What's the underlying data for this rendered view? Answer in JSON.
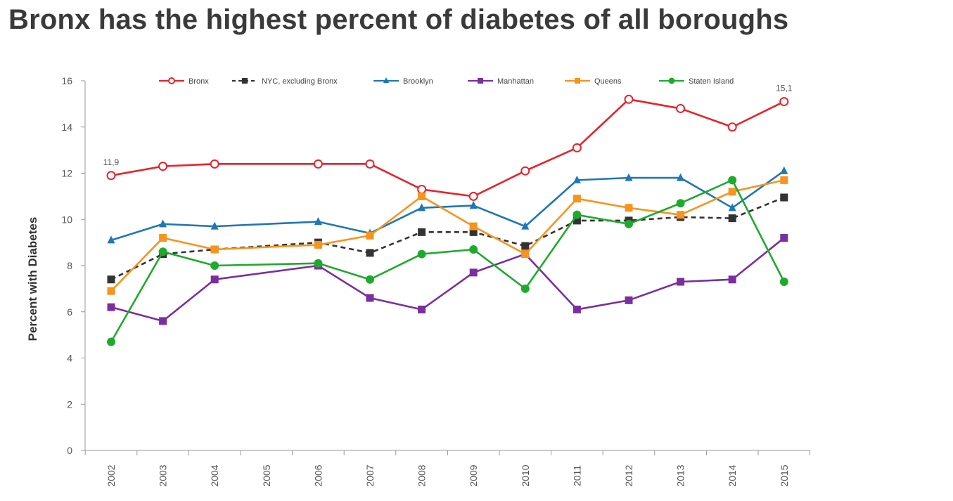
{
  "page_title": "Bronx has the highest percent of diabetes of all boroughs",
  "chart_data": {
    "type": "line",
    "title": "Bronx has the highest percent of diabetes of all boroughs",
    "xlabel": "",
    "ylabel": "Percent with Diabetes",
    "x": [
      "2002",
      "2003",
      "2004",
      "2005",
      "2006",
      "2007",
      "2008",
      "2009",
      "2010",
      "2011",
      "2012",
      "2013",
      "2014",
      "2015"
    ],
    "ylim": [
      0,
      16
    ],
    "yticks": [
      0,
      2,
      4,
      6,
      8,
      10,
      12,
      14,
      16
    ],
    "grid": false,
    "legend_position": "top",
    "series": [
      {
        "name": "Bronx",
        "color": "#e8222a",
        "marker": "open-circle",
        "dash": false,
        "values": [
          11.9,
          12.3,
          12.4,
          null,
          12.4,
          12.4,
          11.3,
          11.0,
          12.1,
          13.1,
          15.2,
          14.8,
          14.0,
          15.1
        ]
      },
      {
        "name": "NYC, excluding Bronx",
        "color": "#333333",
        "marker": "square",
        "dash": true,
        "values": [
          7.4,
          8.5,
          8.7,
          null,
          9.0,
          8.55,
          9.45,
          9.45,
          8.85,
          9.95,
          9.95,
          10.1,
          10.05,
          10.95
        ]
      },
      {
        "name": "Brooklyn",
        "color": "#1f77b4",
        "marker": "triangle",
        "dash": false,
        "values": [
          9.1,
          9.8,
          9.7,
          null,
          9.9,
          9.4,
          10.5,
          10.6,
          9.7,
          11.7,
          11.8,
          11.8,
          10.5,
          12.1
        ]
      },
      {
        "name": "Manhattan",
        "color": "#7b2f9e",
        "marker": "square",
        "dash": false,
        "values": [
          6.2,
          5.6,
          7.4,
          null,
          8.0,
          6.6,
          6.1,
          7.7,
          8.5,
          6.1,
          6.5,
          7.3,
          7.4,
          9.2
        ]
      },
      {
        "name": "Queens",
        "color": "#f7941d",
        "marker": "square",
        "dash": false,
        "values": [
          6.9,
          9.2,
          8.7,
          null,
          8.9,
          9.3,
          11.0,
          9.7,
          8.5,
          10.9,
          10.5,
          10.2,
          11.2,
          11.7
        ]
      },
      {
        "name": "Staten Island",
        "color": "#1faa2e",
        "marker": "circle",
        "dash": false,
        "values": [
          4.7,
          8.6,
          8.0,
          null,
          8.1,
          7.4,
          8.5,
          8.7,
          7.0,
          10.2,
          9.8,
          10.7,
          11.7,
          7.3
        ]
      }
    ],
    "annotations": [
      {
        "series": "Bronx",
        "x": "2002",
        "text": "11,9"
      },
      {
        "series": "Bronx",
        "x": "2015",
        "text": "15,1"
      }
    ]
  }
}
